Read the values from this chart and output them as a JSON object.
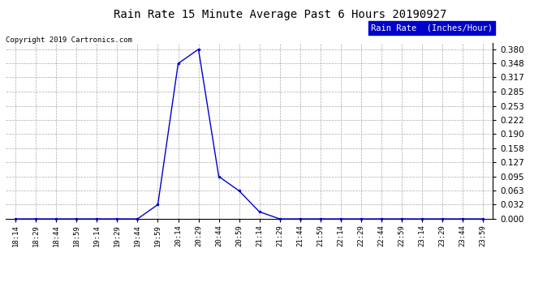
{
  "title": "Rain Rate 15 Minute Average Past 6 Hours 20190927",
  "copyright": "Copyright 2019 Cartronics.com",
  "legend_label": "Rain Rate  (Inches/Hour)",
  "legend_bg": "#0000cc",
  "legend_fg": "#ffffff",
  "line_color": "#0000cc",
  "marker_color": "#000000",
  "background_color": "#ffffff",
  "grid_color": "#aaaaaa",
  "x_labels": [
    "18:14",
    "18:29",
    "18:44",
    "18:59",
    "19:14",
    "19:29",
    "19:44",
    "19:59",
    "20:14",
    "20:29",
    "20:44",
    "20:59",
    "21:14",
    "21:29",
    "21:44",
    "21:59",
    "22:14",
    "22:29",
    "22:44",
    "22:59",
    "23:14",
    "23:29",
    "23:44",
    "23:59"
  ],
  "y_ticks": [
    0.0,
    0.032,
    0.063,
    0.095,
    0.127,
    0.158,
    0.19,
    0.222,
    0.253,
    0.285,
    0.317,
    0.348,
    0.38
  ],
  "ylim": [
    0.0,
    0.395
  ],
  "data_points": {
    "18:14": 0.0,
    "18:29": 0.0,
    "18:44": 0.0,
    "18:59": 0.0,
    "19:14": 0.0,
    "19:29": 0.0,
    "19:44": 0.0,
    "19:59": 0.032,
    "20:14": 0.348,
    "20:29": 0.38,
    "20:44": 0.095,
    "20:59": 0.063,
    "21:14": 0.016,
    "21:29": 0.0,
    "21:44": 0.0,
    "21:59": 0.0,
    "22:14": 0.0,
    "22:29": 0.0,
    "22:44": 0.0,
    "22:59": 0.0,
    "23:14": 0.0,
    "23:29": 0.0,
    "23:44": 0.0,
    "23:59": 0.0
  },
  "figsize": [
    6.9,
    3.75
  ],
  "dpi": 100
}
